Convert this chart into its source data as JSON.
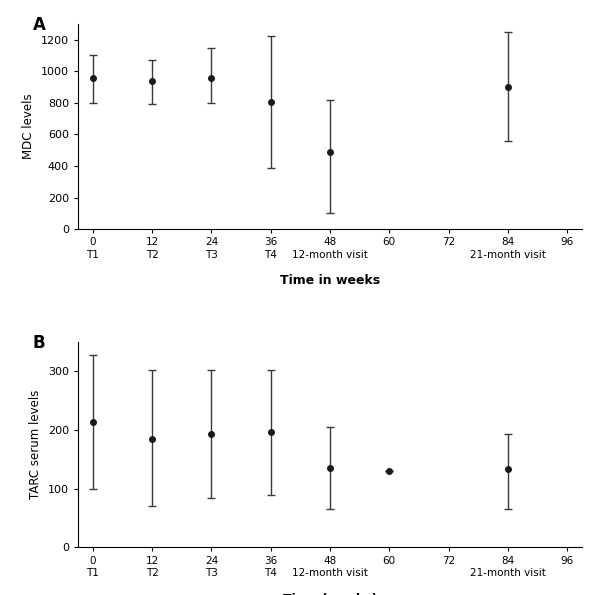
{
  "panel_A": {
    "label": "A",
    "x_values": [
      0,
      12,
      24,
      36,
      48,
      84
    ],
    "y_values": [
      960,
      940,
      960,
      805,
      490,
      900
    ],
    "y_err_lower": [
      160,
      145,
      160,
      415,
      390,
      345
    ],
    "y_err_upper": [
      145,
      130,
      185,
      415,
      330,
      345
    ],
    "ylabel": "MDC levels",
    "xlabel": "Time in weeks",
    "ylim": [
      0,
      1300
    ],
    "yticks": [
      0,
      200,
      400,
      600,
      800,
      1000,
      1200
    ]
  },
  "panel_B": {
    "label": "B",
    "x_values": [
      0,
      12,
      24,
      36,
      48,
      60,
      84
    ],
    "y_values": [
      213,
      185,
      193,
      196,
      135,
      130,
      133
    ],
    "y_err_lower": [
      113,
      115,
      108,
      107,
      70,
      0,
      67
    ],
    "y_err_upper": [
      115,
      117,
      110,
      107,
      70,
      0,
      60
    ],
    "ylabel": "TARC serum levels",
    "xlabel": "Time (weeks)",
    "ylim": [
      0,
      350
    ],
    "yticks": [
      0,
      100,
      200,
      300
    ]
  },
  "x_ticks": [
    0,
    12,
    24,
    36,
    48,
    60,
    72,
    84,
    96
  ],
  "visit_labels": {
    "0": "T1",
    "12": "T2",
    "24": "T3",
    "36": "T4",
    "48": "12-month visit",
    "84": "21-month visit"
  },
  "line_color": "#3a3a3a",
  "marker": "o",
  "marker_size": 4,
  "marker_facecolor": "#1a1a1a",
  "capsize": 3,
  "elinewidth": 1.0,
  "linewidth": 1.0
}
